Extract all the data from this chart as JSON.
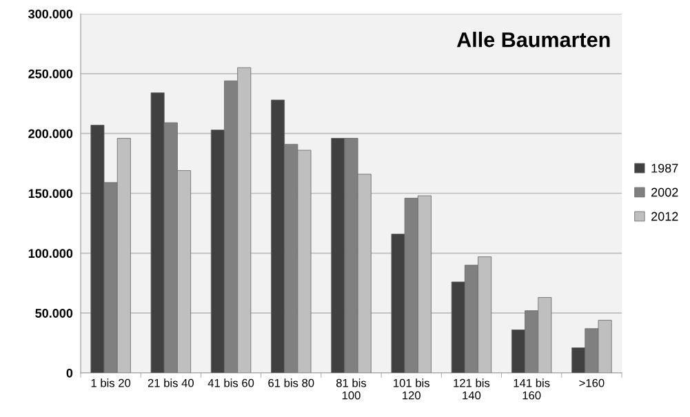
{
  "chart_data": {
    "type": "bar",
    "title": "Alle Baumarten",
    "categories": [
      "1 bis 20",
      "21 bis 40",
      "41 bis 60",
      "61 bis 80",
      "81 bis 100",
      "101 bis 120",
      "121 bis 140",
      "141 bis 160",
      ">160"
    ],
    "series": [
      {
        "name": "1987",
        "color": "#404040",
        "values": [
          207000,
          234000,
          203000,
          228000,
          196000,
          116000,
          76000,
          36000,
          21000
        ]
      },
      {
        "name": "2002",
        "color": "#808080",
        "values": [
          159000,
          209000,
          244000,
          191000,
          196000,
          146000,
          90000,
          52000,
          37000
        ]
      },
      {
        "name": "2012",
        "color": "#bfbfbf",
        "values": [
          196000,
          169000,
          255000,
          186000,
          166000,
          148000,
          97000,
          63000,
          44000
        ]
      }
    ],
    "ylim": [
      0,
      300000
    ],
    "yticks": [
      0,
      {
        "value": 50000,
        "label": "50.000"
      },
      {
        "value": 100000,
        "label": "100.000"
      },
      {
        "value": 150000,
        "label": "150.000"
      },
      {
        "value": 200000,
        "label": "200.000"
      },
      {
        "value": 250000,
        "label": "250.000"
      },
      {
        "value": 300000,
        "label": "300.000"
      }
    ],
    "grid": "y",
    "legend": "right"
  }
}
